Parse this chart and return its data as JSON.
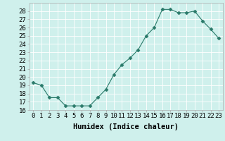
{
  "x": [
    0,
    1,
    2,
    3,
    4,
    5,
    6,
    7,
    8,
    9,
    10,
    11,
    12,
    13,
    14,
    15,
    16,
    17,
    18,
    19,
    20,
    21,
    22,
    23
  ],
  "y": [
    19.3,
    19.0,
    17.5,
    17.5,
    16.5,
    16.5,
    16.5,
    16.5,
    17.5,
    18.5,
    20.3,
    21.5,
    22.3,
    23.3,
    25.0,
    26.0,
    28.2,
    28.2,
    27.8,
    27.8,
    28.0,
    26.8,
    25.8,
    24.7
  ],
  "xlabel": "Humidex (Indice chaleur)",
  "ylim": [
    16,
    29
  ],
  "xlim_min": -0.5,
  "xlim_max": 23.5,
  "yticks": [
    16,
    17,
    18,
    19,
    20,
    21,
    22,
    23,
    24,
    25,
    26,
    27,
    28
  ],
  "xticks": [
    0,
    1,
    2,
    3,
    4,
    5,
    6,
    7,
    8,
    9,
    10,
    11,
    12,
    13,
    14,
    15,
    16,
    17,
    18,
    19,
    20,
    21,
    22,
    23
  ],
  "xtick_labels": [
    "0",
    "1",
    "2",
    "3",
    "4",
    "5",
    "6",
    "7",
    "8",
    "9",
    "10",
    "11",
    "12",
    "13",
    "14",
    "15",
    "16",
    "17",
    "18",
    "19",
    "20",
    "21",
    "22",
    "23"
  ],
  "line_color": "#2a7a6a",
  "marker": "D",
  "marker_size": 2.5,
  "bg_color": "#cff0ec",
  "grid_color": "#ffffff",
  "xlabel_fontsize": 7.5,
  "tick_fontsize": 6.5,
  "fig_width": 3.2,
  "fig_height": 2.0,
  "dpi": 100
}
